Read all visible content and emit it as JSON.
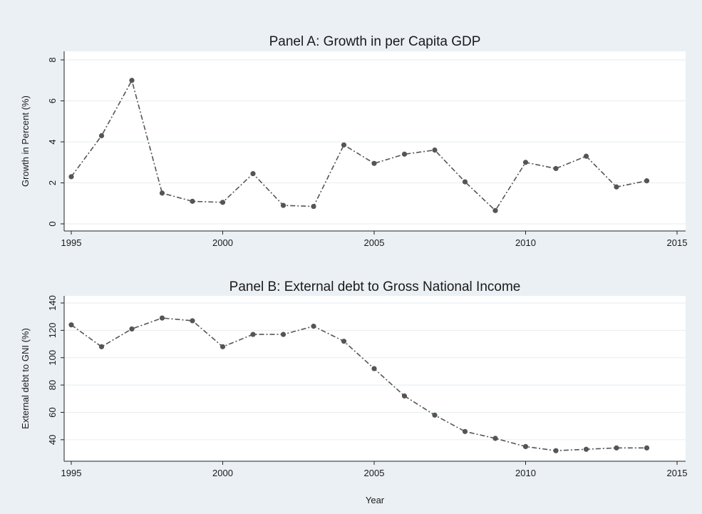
{
  "chart_data": [
    {
      "type": "line",
      "title": "Panel A: Growth in per Capita GDP",
      "xlabel": "",
      "ylabel": "Growth in Percent (%)",
      "x": [
        1995,
        1996,
        1997,
        1998,
        1999,
        2000,
        2001,
        2002,
        2003,
        2004,
        2005,
        2006,
        2007,
        2008,
        2009,
        2010,
        2011,
        2012,
        2013,
        2014
      ],
      "series": [
        {
          "values": [
            2.3,
            4.3,
            7.0,
            1.5,
            1.1,
            1.05,
            2.45,
            0.9,
            0.85,
            3.85,
            2.95,
            3.4,
            3.6,
            2.05,
            0.65,
            3.0,
            2.7,
            3.3,
            1.8,
            2.1
          ]
        }
      ],
      "xlim": [
        1995,
        2015
      ],
      "ylim": [
        0,
        8
      ],
      "xticks": [
        "1995",
        "2000",
        "2005",
        "2010",
        "2015"
      ],
      "yticks": [
        "0",
        "2",
        "4",
        "6",
        "8"
      ],
      "grid": true,
      "color": "#555555"
    },
    {
      "type": "line",
      "title": "Panel B: External debt to Gross National Income",
      "xlabel": "Year",
      "ylabel": "External debt to GNI (%)",
      "x": [
        1995,
        1996,
        1997,
        1998,
        1999,
        2000,
        2001,
        2002,
        2003,
        2004,
        2005,
        2006,
        2007,
        2008,
        2009,
        2010,
        2011,
        2012,
        2013,
        2014
      ],
      "series": [
        {
          "values": [
            124,
            108,
            121,
            129,
            127,
            108,
            117,
            117,
            123,
            112,
            92,
            72,
            58,
            46,
            41,
            35,
            32,
            33,
            34,
            34
          ]
        }
      ],
      "xlim": [
        1995,
        2015
      ],
      "ylim": [
        30,
        140
      ],
      "xticks": [
        "1995",
        "2000",
        "2005",
        "2010",
        "2015"
      ],
      "yticks": [
        "40",
        "60",
        "80",
        "100",
        "120",
        "140"
      ],
      "grid": true,
      "color": "#555555"
    }
  ]
}
